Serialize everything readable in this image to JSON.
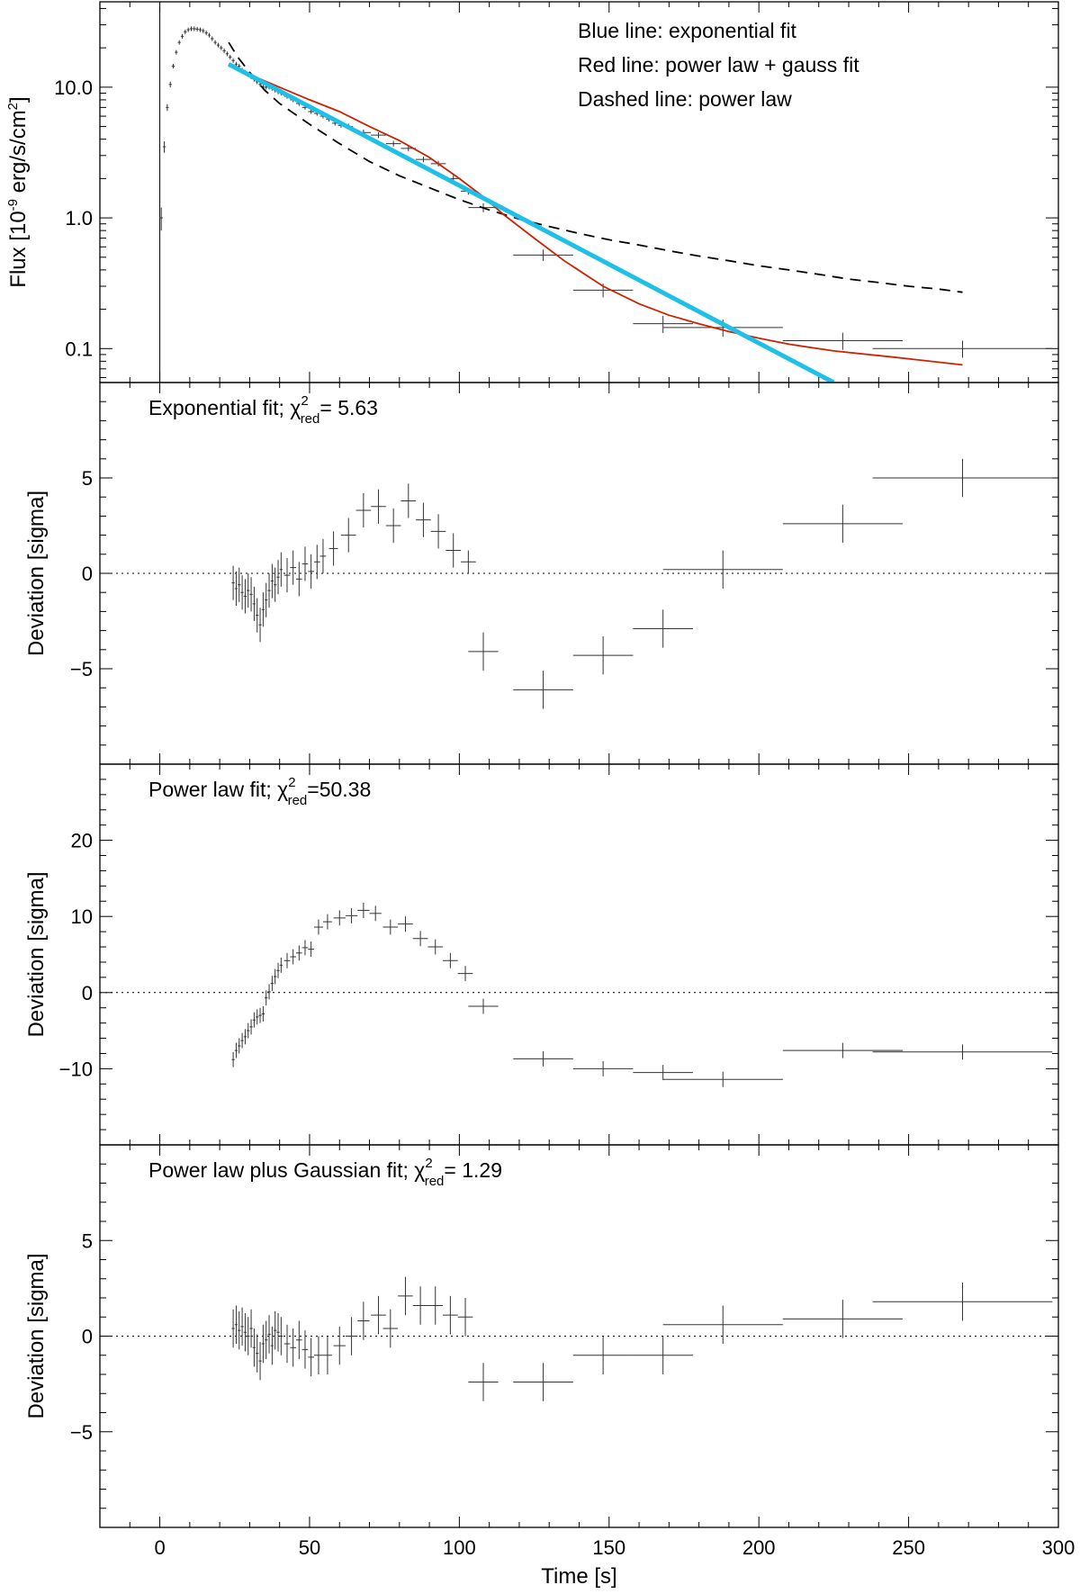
{
  "chart_data": [
    {
      "type": "scatter",
      "panel": "flux",
      "yscale": "log",
      "ylabel": "Flux [10⁻⁹ erg/s/cm²]",
      "xlim": [
        -20,
        300
      ],
      "ylim": [
        0.055,
        45
      ],
      "ytick_values": [
        0.1,
        1.0,
        10.0
      ],
      "ytick_labels": [
        "0.1",
        "1.0",
        "10.0"
      ],
      "legend": [
        "Blue line: exponential fit",
        "Red line: power law + gauss fit",
        "Dashed line: power law"
      ],
      "colors": {
        "exponential": "#1ec0e8",
        "powerlaw_gauss": "#cc2200",
        "powerlaw": "#000000",
        "data": "#333333"
      },
      "data": {
        "x": [
          0.5,
          1.5,
          2.5,
          3.5,
          4.5,
          5.5,
          6.5,
          7.5,
          8.5,
          9.5,
          10.5,
          11.5,
          12.5,
          13.5,
          14.5,
          15.5,
          16.5,
          17.5,
          18.5,
          19.5,
          20.5,
          21.5,
          22.5,
          23.5,
          24.5,
          25.5,
          26.5,
          27.5,
          28.5,
          29.5,
          30.5,
          31.5,
          32.5,
          33.5,
          34.5,
          35.5,
          36.5,
          37.5,
          38.5,
          39.5,
          40.5,
          42.5,
          44.5,
          46.5,
          48.5,
          50.5,
          52.5,
          54.5,
          56.5,
          58.5,
          60.5,
          63,
          68,
          73,
          78,
          83,
          88,
          93,
          98,
          103,
          108,
          128,
          148,
          168,
          188,
          228,
          268
        ],
        "y": [
          1.0,
          3.5,
          7.0,
          10.5,
          14.5,
          18.5,
          22.0,
          24.5,
          26.5,
          27.5,
          28.0,
          28.0,
          27.8,
          27.5,
          27.0,
          26.0,
          25.0,
          23.5,
          22.0,
          21.0,
          20.0,
          19.0,
          18.0,
          17.0,
          16.0,
          15.0,
          14.5,
          13.5,
          13.0,
          12.5,
          12.0,
          11.5,
          11.0,
          10.5,
          10.0,
          10.0,
          10.0,
          9.8,
          9.5,
          9.2,
          9.0,
          8.5,
          8.0,
          7.5,
          7.0,
          6.5,
          6.3,
          6.0,
          5.7,
          5.3,
          5.1,
          5.0,
          4.5,
          4.3,
          3.7,
          3.4,
          2.8,
          2.6,
          2.0,
          1.6,
          1.2,
          0.52,
          0.28,
          0.155,
          0.145,
          0.115,
          0.1
        ],
        "xerr": [
          0.5,
          0.5,
          0.5,
          0.5,
          0.5,
          0.5,
          0.5,
          0.5,
          0.5,
          0.5,
          0.5,
          0.5,
          0.5,
          0.5,
          0.5,
          0.5,
          0.5,
          0.5,
          0.5,
          0.5,
          0.5,
          0.5,
          0.5,
          0.5,
          0.5,
          0.5,
          0.5,
          0.5,
          0.5,
          0.5,
          0.5,
          0.5,
          0.5,
          0.5,
          0.5,
          0.5,
          0.5,
          0.5,
          0.5,
          0.5,
          0.5,
          1,
          1,
          1,
          1,
          1,
          1,
          1,
          1,
          1,
          1,
          1.5,
          2.5,
          2.5,
          2.5,
          2.5,
          2.5,
          2.5,
          2.5,
          2.5,
          5,
          10,
          10,
          10,
          20,
          20,
          30
        ],
        "yerr_frac": [
          0.2,
          0.1,
          0.06,
          0.05,
          0.04,
          0.04,
          0.04,
          0.04,
          0.04,
          0.04,
          0.04,
          0.04,
          0.04,
          0.04,
          0.04,
          0.04,
          0.04,
          0.04,
          0.04,
          0.04,
          0.04,
          0.04,
          0.04,
          0.04,
          0.04,
          0.04,
          0.04,
          0.04,
          0.04,
          0.04,
          0.04,
          0.04,
          0.04,
          0.04,
          0.04,
          0.04,
          0.04,
          0.04,
          0.04,
          0.04,
          0.04,
          0.04,
          0.04,
          0.04,
          0.04,
          0.04,
          0.04,
          0.04,
          0.04,
          0.04,
          0.04,
          0.05,
          0.05,
          0.05,
          0.05,
          0.05,
          0.05,
          0.05,
          0.06,
          0.06,
          0.08,
          0.1,
          0.12,
          0.15,
          0.15,
          0.15,
          0.15
        ]
      },
      "exponential_fit": {
        "x": [
          23,
          225
        ],
        "y": [
          15.0,
          0.055
        ]
      },
      "powerlaw_gauss_fit": {
        "x": [
          23,
          30,
          40,
          50,
          60,
          70,
          80,
          90,
          100,
          108,
          115,
          125,
          135,
          148,
          160,
          170,
          180,
          190,
          200,
          210,
          225,
          245,
          268
        ],
        "y": [
          15,
          12.5,
          10,
          8,
          6.5,
          5,
          3.9,
          2.9,
          2.0,
          1.45,
          1.05,
          0.7,
          0.47,
          0.3,
          0.22,
          0.18,
          0.155,
          0.135,
          0.12,
          0.108,
          0.096,
          0.086,
          0.075
        ]
      },
      "powerlaw_fit": {
        "x": [
          23,
          26,
          30,
          35,
          40,
          50,
          60,
          70,
          80,
          90,
          100,
          110,
          120,
          130,
          140,
          150,
          160,
          170,
          180,
          190,
          200,
          210,
          220,
          230,
          240,
          250,
          260,
          268
        ],
        "y": [
          22,
          17,
          13,
          9.5,
          7.5,
          5.2,
          3.7,
          2.7,
          2.1,
          1.7,
          1.38,
          1.15,
          0.98,
          0.86,
          0.76,
          0.68,
          0.62,
          0.56,
          0.51,
          0.47,
          0.43,
          0.4,
          0.37,
          0.34,
          0.32,
          0.3,
          0.285,
          0.27
        ]
      },
      "vertical_line_x": 0
    },
    {
      "type": "scatter",
      "panel": "residuals_exponential",
      "title_prefix": "Exponential fit; χ",
      "title_sup": "2",
      "title_sub": "red",
      "title_value": "=  5.63",
      "ylabel": "Deviation [sigma]",
      "xlim": [
        -20,
        300
      ],
      "ylim": [
        -10,
        10
      ],
      "ytick_values": [
        -5,
        0,
        5
      ],
      "ytick_labels": [
        "−5",
        "0",
        "5"
      ],
      "reference_line_y": 0,
      "x": [
        24.5,
        25.5,
        26.5,
        27.5,
        28.5,
        29.5,
        30.5,
        31.5,
        32.5,
        33.5,
        34.5,
        35.5,
        36.5,
        37.5,
        38.5,
        39.5,
        40.5,
        42.5,
        44.5,
        46.5,
        48.5,
        50.5,
        52.5,
        54.5,
        58,
        63,
        68,
        73,
        78,
        83,
        88,
        93,
        98,
        103,
        108,
        128,
        148,
        168,
        188,
        228,
        268
      ],
      "xerr": [
        0.5,
        0.5,
        0.5,
        0.5,
        0.5,
        0.5,
        0.5,
        0.5,
        0.5,
        0.5,
        0.5,
        0.5,
        0.5,
        0.5,
        0.5,
        0.5,
        0.5,
        1,
        1,
        1,
        1,
        1,
        1,
        1,
        1.5,
        2.5,
        2.5,
        2.5,
        2.5,
        2.5,
        2.5,
        2.5,
        2.5,
        2.5,
        5,
        10,
        10,
        10,
        20,
        20,
        30
      ],
      "y": [
        -0.5,
        -0.8,
        -0.6,
        -1.0,
        -1.2,
        -0.9,
        -1.1,
        -1.6,
        -2.2,
        -2.7,
        -1.9,
        -1.4,
        -0.9,
        -0.4,
        -0.6,
        -0.2,
        0.2,
        -0.1,
        0.3,
        -0.3,
        0.5,
        0.1,
        0.6,
        0.9,
        1.3,
        2.0,
        3.3,
        3.5,
        2.5,
        3.8,
        2.8,
        2.2,
        1.2,
        0.6,
        -4.1,
        -6.1,
        -4.3,
        -2.9,
        0.2,
        2.6,
        5.0
      ],
      "yerr": [
        0.9,
        0.9,
        0.9,
        0.9,
        0.9,
        0.9,
        0.9,
        0.9,
        0.9,
        0.9,
        0.9,
        0.9,
        0.9,
        0.9,
        0.9,
        0.9,
        0.9,
        0.9,
        0.9,
        0.9,
        0.9,
        0.9,
        0.9,
        0.9,
        0.9,
        0.9,
        0.9,
        0.9,
        0.9,
        0.9,
        0.9,
        0.9,
        0.9,
        0.6,
        1.0,
        1.0,
        1.0,
        1.0,
        1.0,
        1.0,
        1.0
      ]
    },
    {
      "type": "scatter",
      "panel": "residuals_powerlaw",
      "title_prefix": "Power law fit; χ",
      "title_sup": "2",
      "title_sub": "red",
      "title_value": "=50.38",
      "ylabel": "Deviation [sigma]",
      "xlim": [
        -20,
        300
      ],
      "ylim": [
        -20,
        30
      ],
      "ytick_values": [
        -10,
        0,
        10,
        20
      ],
      "ytick_labels": [
        "−10",
        "0",
        "10",
        "20"
      ],
      "reference_line_y": 0,
      "x": [
        24.5,
        25.5,
        26.5,
        27.5,
        28.5,
        29.5,
        30.5,
        31.5,
        32.5,
        33.5,
        34.5,
        35.5,
        36.5,
        37.5,
        38.5,
        39.5,
        40.5,
        42.5,
        44.5,
        46.5,
        48.5,
        50.5,
        53,
        56,
        60,
        64,
        68,
        72,
        77,
        82,
        87,
        92,
        97,
        102,
        108,
        128,
        148,
        168,
        188,
        228,
        268
      ],
      "xerr": [
        0.5,
        0.5,
        0.5,
        0.5,
        0.5,
        0.5,
        0.5,
        0.5,
        0.5,
        0.5,
        0.5,
        0.5,
        0.5,
        0.5,
        0.5,
        0.5,
        0.5,
        1,
        1,
        1,
        1,
        1,
        1.5,
        1.5,
        2,
        2,
        2,
        2,
        2.5,
        2.5,
        2.5,
        2.5,
        2.5,
        2.5,
        5,
        10,
        10,
        10,
        20,
        20,
        30
      ],
      "y": [
        -8.8,
        -7.6,
        -7.0,
        -6.3,
        -5.8,
        -5.0,
        -4.5,
        -3.6,
        -3.2,
        -3.0,
        -2.8,
        -0.7,
        0.1,
        1.2,
        2.1,
        2.9,
        3.6,
        4.2,
        4.7,
        5.2,
        5.9,
        5.7,
        8.6,
        9.3,
        9.8,
        10.1,
        10.8,
        10.4,
        8.6,
        9.0,
        7.1,
        6.0,
        4.2,
        2.5,
        -1.8,
        -8.7,
        -10.0,
        -10.5,
        -11.4,
        -7.6,
        -7.8
      ],
      "yerr": [
        1.0,
        1.0,
        1.0,
        1.0,
        1.0,
        1.0,
        1.0,
        1.0,
        1.0,
        1.0,
        1.0,
        1.0,
        1.0,
        1.0,
        1.0,
        1.0,
        1.0,
        1.0,
        1.0,
        1.0,
        1.0,
        1.0,
        1.0,
        1.0,
        1.0,
        1.0,
        1.0,
        1.0,
        1.0,
        1.0,
        1.0,
        1.0,
        1.0,
        1.0,
        1.0,
        1.0,
        1.0,
        1.0,
        1.0,
        1.0,
        1.0
      ]
    },
    {
      "type": "scatter",
      "panel": "residuals_powerlaw_gauss",
      "title_prefix": "Power law plus Gaussian fit; χ",
      "title_sup": "2",
      "title_sub": "red",
      "title_value": "=  1.29",
      "ylabel": "Deviation [sigma]",
      "xlabel": "Time [s]",
      "xtick_values": [
        0,
        50,
        100,
        150,
        200,
        250,
        300
      ],
      "xtick_labels": [
        "0",
        "50",
        "100",
        "150",
        "200",
        "250",
        "300"
      ],
      "xlim": [
        -20,
        300
      ],
      "ylim": [
        -10,
        10
      ],
      "ytick_values": [
        -5,
        0,
        5
      ],
      "ytick_labels": [
        "−5",
        "0",
        "5"
      ],
      "reference_line_y": 0,
      "x": [
        24.5,
        25.5,
        26.5,
        27.5,
        28.5,
        29.5,
        30.5,
        31.5,
        32.5,
        33.5,
        34.5,
        35.5,
        36.5,
        37.5,
        38.5,
        39.5,
        40.5,
        42.5,
        44.5,
        46.5,
        48.5,
        50.5,
        53,
        56,
        60,
        64,
        68,
        73,
        77,
        82,
        87,
        92,
        97,
        102,
        108,
        128,
        148,
        168,
        188,
        228,
        268
      ],
      "xerr": [
        0.5,
        0.5,
        0.5,
        0.5,
        0.5,
        0.5,
        0.5,
        0.5,
        0.5,
        0.5,
        0.5,
        0.5,
        0.5,
        0.5,
        0.5,
        0.5,
        0.5,
        1,
        1,
        1,
        1,
        1,
        1.5,
        1.5,
        2,
        2,
        2,
        2.5,
        2.5,
        2.5,
        2.5,
        2.5,
        2.5,
        2.5,
        5,
        10,
        10,
        10,
        20,
        20,
        30
      ],
      "y": [
        0.4,
        0.6,
        0.3,
        0.5,
        0.2,
        0.0,
        0.4,
        -0.6,
        -0.9,
        -1.3,
        -0.4,
        -0.2,
        0.1,
        -0.5,
        0.3,
        0.2,
        0.0,
        -0.4,
        -0.6,
        -0.2,
        -0.7,
        -1.1,
        -1.0,
        -1.0,
        -0.5,
        0.0,
        0.8,
        1.1,
        0.4,
        2.1,
        1.6,
        1.6,
        1.1,
        1.0,
        -2.4,
        -2.4,
        -1.0,
        -1.0,
        0.6,
        0.9,
        1.8
      ],
      "yerr": [
        1.0,
        1.0,
        1.0,
        1.0,
        1.0,
        1.0,
        1.0,
        1.0,
        1.0,
        1.0,
        1.0,
        1.0,
        1.0,
        1.0,
        1.0,
        1.0,
        1.0,
        1.0,
        1.0,
        1.0,
        1.0,
        1.0,
        1.0,
        1.0,
        1.0,
        1.0,
        1.0,
        1.0,
        1.0,
        1.0,
        1.0,
        1.0,
        1.0,
        1.0,
        1.0,
        1.0,
        1.0,
        1.0,
        1.0,
        1.0,
        1.0
      ]
    }
  ]
}
